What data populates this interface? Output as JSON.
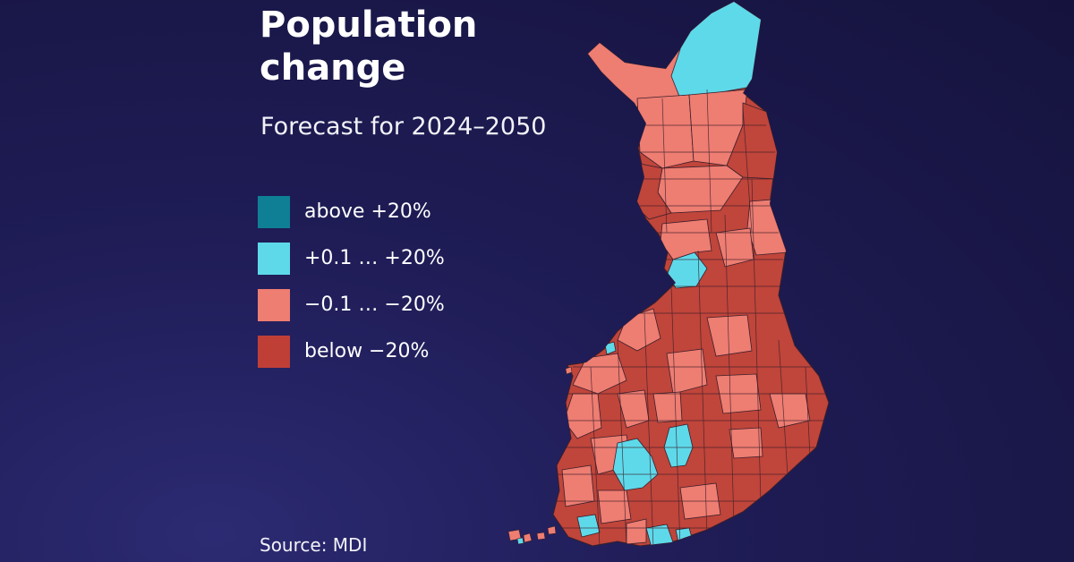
{
  "title": "Population change",
  "subtitle": "Forecast for 2024–2050",
  "legend": {
    "items": [
      {
        "label": "above +20%",
        "color": "#0e7f95"
      },
      {
        "label": "+0.1 … +20%",
        "color": "#5ed9ea"
      },
      {
        "label": "−0.1 … −20%",
        "color": "#ee7d72"
      },
      {
        "label": "below −20%",
        "color": "#bf3f37"
      }
    ]
  },
  "source": "Source: MDI",
  "colors": {
    "background": "#1b1a4f",
    "border": "#3a1f2a"
  }
}
